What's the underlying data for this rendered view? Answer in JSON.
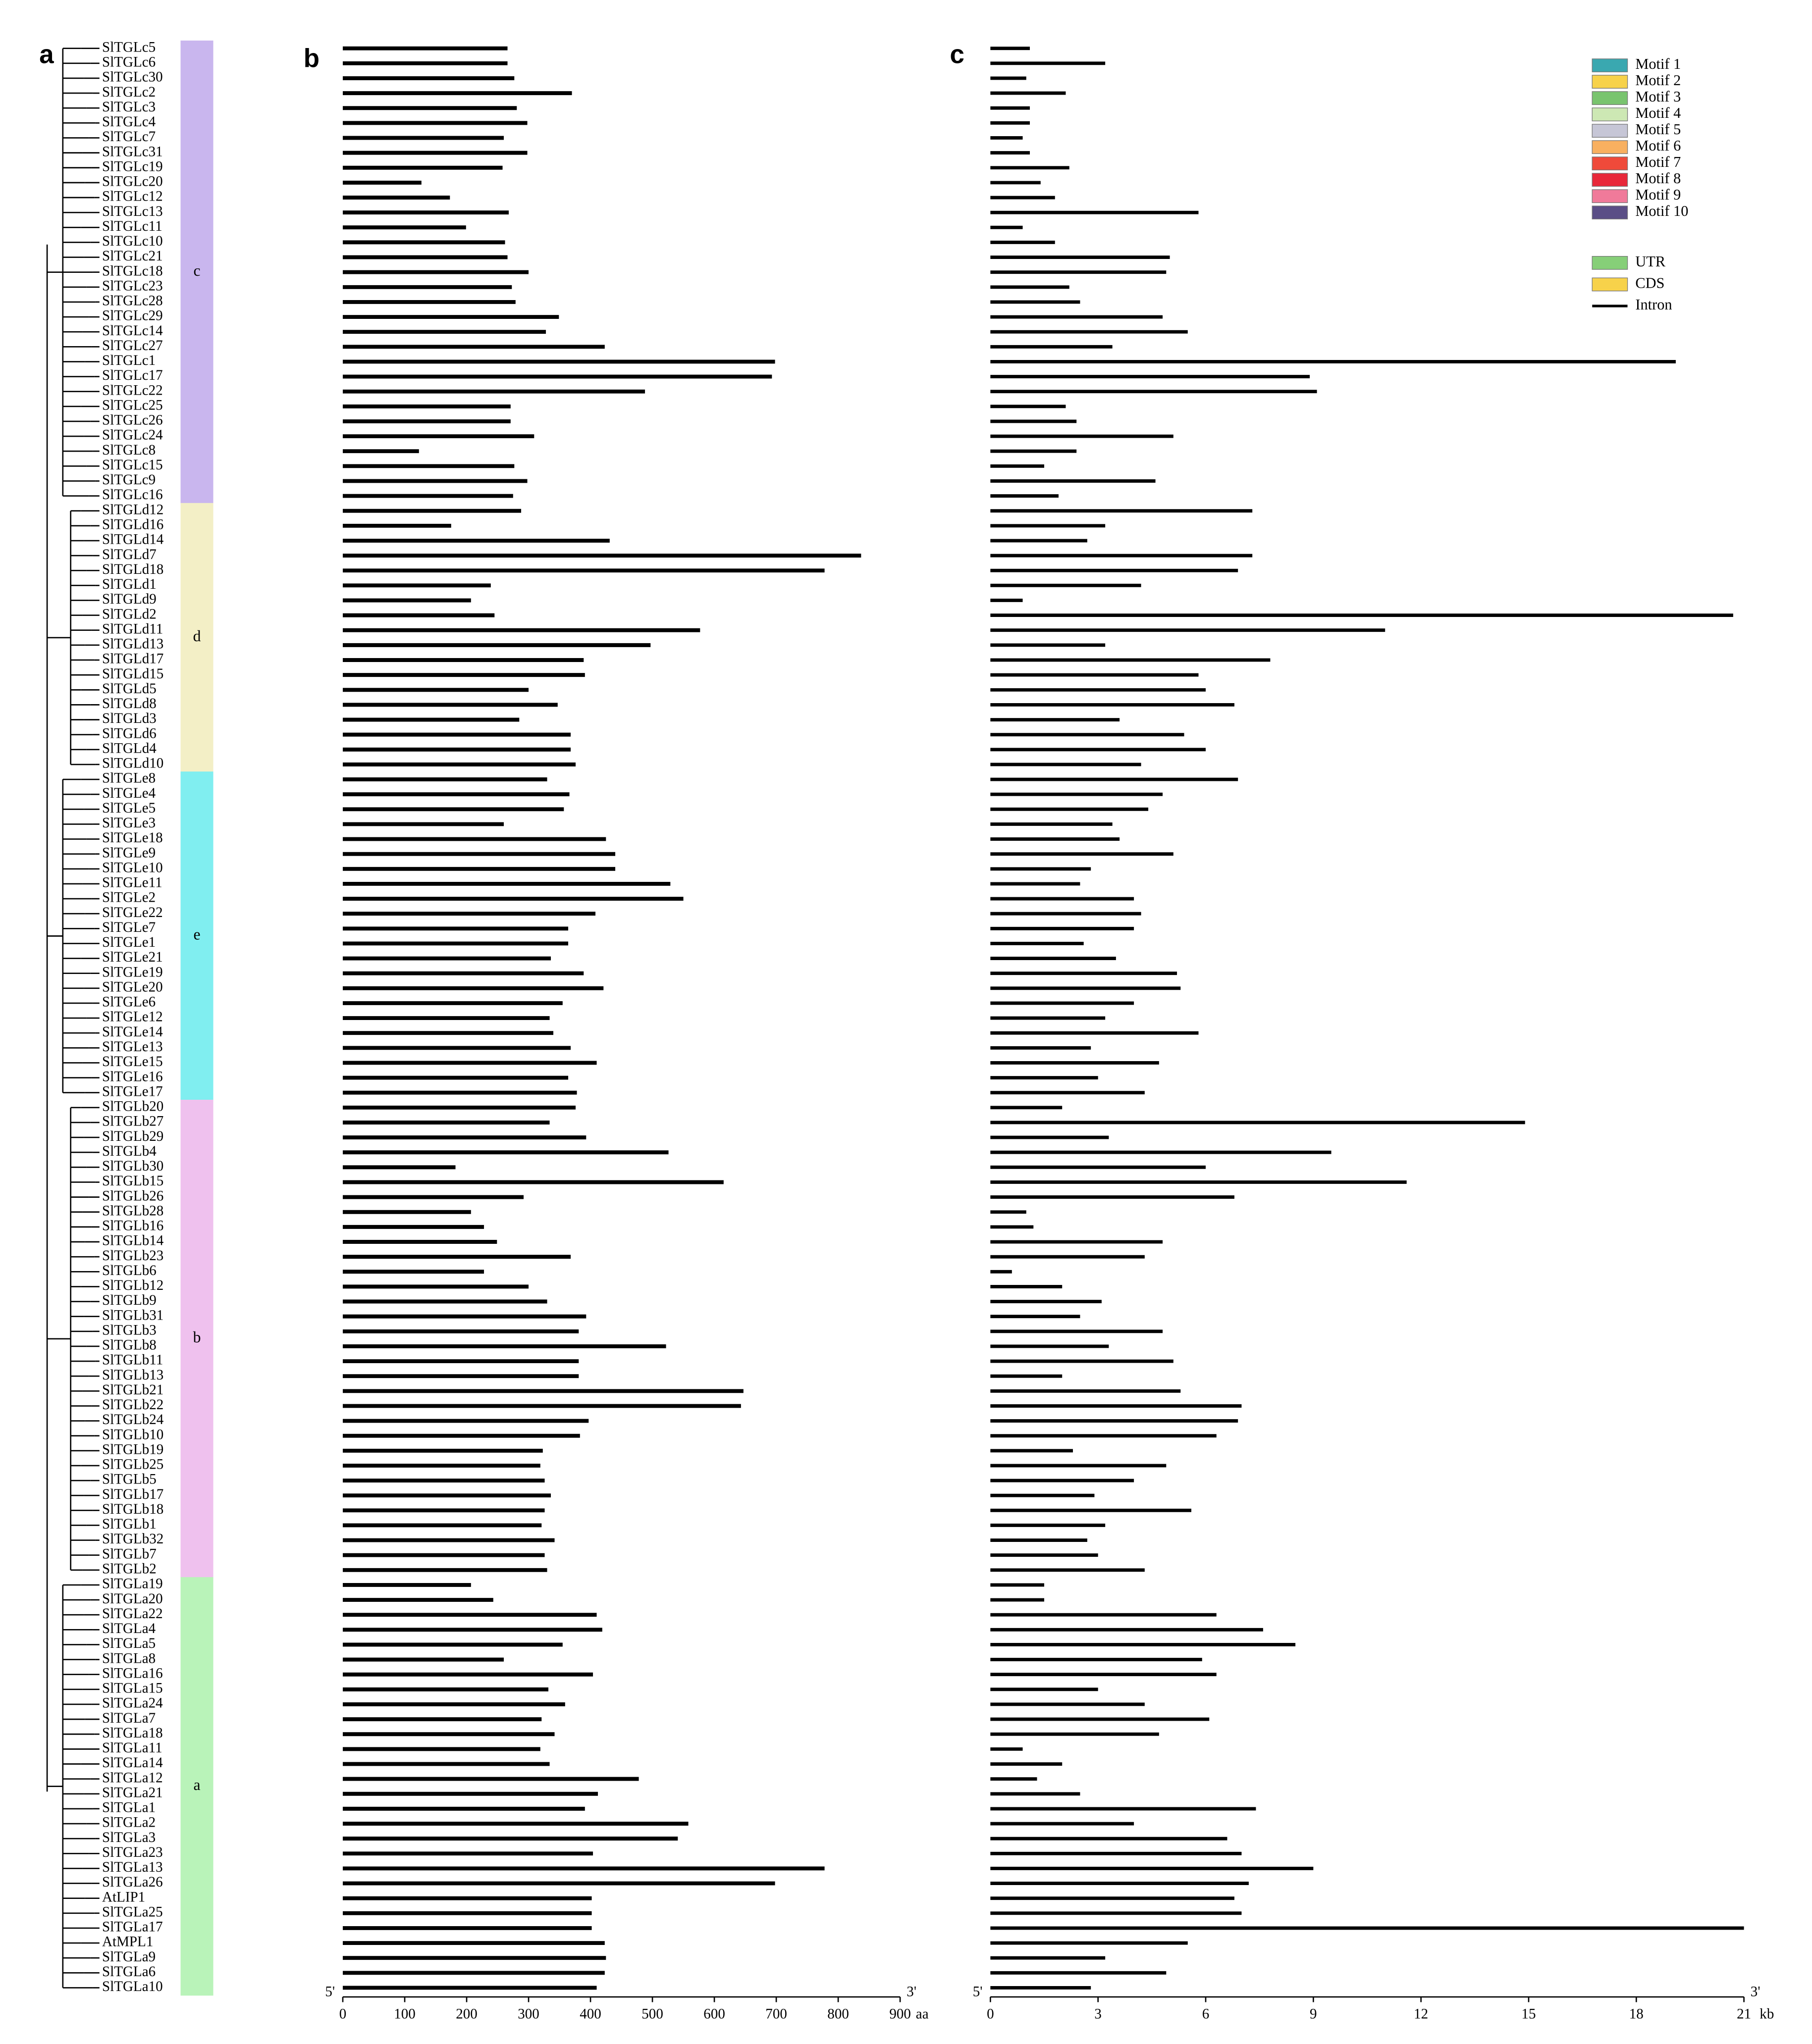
{
  "panel_labels": [
    "a",
    "b",
    "c"
  ],
  "groups": [
    {
      "label": "c",
      "color": "#c9b6ee",
      "genes": [
        {
          "name": "SlTGLc5",
          "protein_aa": 266,
          "gene_kb": 1.1
        },
        {
          "name": "SlTGLc6",
          "protein_aa": 266,
          "gene_kb": 3.2
        },
        {
          "name": "SlTGLc30",
          "protein_aa": 277,
          "gene_kb": 1.0
        },
        {
          "name": "SlTGLc2",
          "protein_aa": 370,
          "gene_kb": 2.1
        },
        {
          "name": "SlTGLc3",
          "protein_aa": 281,
          "gene_kb": 1.1
        },
        {
          "name": "SlTGLc4",
          "protein_aa": 298,
          "gene_kb": 1.1
        },
        {
          "name": "SlTGLc7",
          "protein_aa": 260,
          "gene_kb": 0.9
        },
        {
          "name": "SlTGLc31",
          "protein_aa": 298,
          "gene_kb": 1.1
        },
        {
          "name": "SlTGLc19",
          "protein_aa": 258,
          "gene_kb": 2.2
        },
        {
          "name": "SlTGLc20",
          "protein_aa": 127,
          "gene_kb": 1.4
        },
        {
          "name": "SlTGLc12",
          "protein_aa": 173,
          "gene_kb": 1.8
        },
        {
          "name": "SlTGLc13",
          "protein_aa": 268,
          "gene_kb": 5.8
        },
        {
          "name": "SlTGLc11",
          "protein_aa": 199,
          "gene_kb": 0.9
        },
        {
          "name": "SlTGLc10",
          "protein_aa": 262,
          "gene_kb": 1.8
        },
        {
          "name": "SlTGLc21",
          "protein_aa": 266,
          "gene_kb": 5.0
        },
        {
          "name": "SlTGLc18",
          "protein_aa": 300,
          "gene_kb": 4.9
        },
        {
          "name": "SlTGLc23",
          "protein_aa": 273,
          "gene_kb": 2.2
        },
        {
          "name": "SlTGLc28",
          "protein_aa": 279,
          "gene_kb": 2.5
        },
        {
          "name": "SlTGLc29",
          "protein_aa": 349,
          "gene_kb": 4.8
        },
        {
          "name": "SlTGLc14",
          "protein_aa": 328,
          "gene_kb": 5.5
        },
        {
          "name": "SlTGLc27",
          "protein_aa": 423,
          "gene_kb": 3.4
        },
        {
          "name": "SlTGLc1",
          "protein_aa": 698,
          "gene_kb": 19.1
        },
        {
          "name": "SlTGLc17",
          "protein_aa": 693,
          "gene_kb": 8.9
        },
        {
          "name": "SlTGLc22",
          "protein_aa": 488,
          "gene_kb": 9.1
        },
        {
          "name": "SlTGLc25",
          "protein_aa": 271,
          "gene_kb": 2.1
        },
        {
          "name": "SlTGLc26",
          "protein_aa": 271,
          "gene_kb": 2.4
        },
        {
          "name": "SlTGLc24",
          "protein_aa": 309,
          "gene_kb": 5.1
        },
        {
          "name": "SlTGLc8",
          "protein_aa": 123,
          "gene_kb": 2.4
        },
        {
          "name": "SlTGLc15",
          "protein_aa": 277,
          "gene_kb": 1.5
        },
        {
          "name": "SlTGLc9",
          "protein_aa": 298,
          "gene_kb": 4.6
        },
        {
          "name": "SlTGLc16",
          "protein_aa": 275,
          "gene_kb": 1.9
        }
      ]
    },
    {
      "label": "d",
      "color": "#f3efc6",
      "genes": [
        {
          "name": "SlTGLd12",
          "protein_aa": 288,
          "gene_kb": 7.3
        },
        {
          "name": "SlTGLd16",
          "protein_aa": 175,
          "gene_kb": 3.2
        },
        {
          "name": "SlTGLd14",
          "protein_aa": 431,
          "gene_kb": 2.7
        },
        {
          "name": "SlTGLd7",
          "protein_aa": 837,
          "gene_kb": 7.3
        },
        {
          "name": "SlTGLd18",
          "protein_aa": 778,
          "gene_kb": 6.9
        },
        {
          "name": "SlTGLd1",
          "protein_aa": 239,
          "gene_kb": 4.2
        },
        {
          "name": "SlTGLd9",
          "protein_aa": 207,
          "gene_kb": 0.9
        },
        {
          "name": "SlTGLd2",
          "protein_aa": 245,
          "gene_kb": 20.7
        },
        {
          "name": "SlTGLd11",
          "protein_aa": 577,
          "gene_kb": 11.0
        },
        {
          "name": "SlTGLd13",
          "protein_aa": 497,
          "gene_kb": 3.2
        },
        {
          "name": "SlTGLd17",
          "protein_aa": 389,
          "gene_kb": 7.8
        },
        {
          "name": "SlTGLd15",
          "protein_aa": 391,
          "gene_kb": 5.8
        },
        {
          "name": "SlTGLd5",
          "protein_aa": 300,
          "gene_kb": 6.0
        },
        {
          "name": "SlTGLd8",
          "protein_aa": 347,
          "gene_kb": 6.8
        },
        {
          "name": "SlTGLd3",
          "protein_aa": 285,
          "gene_kb": 3.6
        },
        {
          "name": "SlTGLd6",
          "protein_aa": 368,
          "gene_kb": 5.4
        },
        {
          "name": "SlTGLd4",
          "protein_aa": 368,
          "gene_kb": 6.0
        },
        {
          "name": "SlTGLd10",
          "protein_aa": 376,
          "gene_kb": 4.2
        }
      ]
    },
    {
      "label": "e",
      "color": "#80eef0",
      "genes": [
        {
          "name": "SlTGLe8",
          "protein_aa": 330,
          "gene_kb": 6.9
        },
        {
          "name": "SlTGLe4",
          "protein_aa": 366,
          "gene_kb": 4.8
        },
        {
          "name": "SlTGLe5",
          "protein_aa": 357,
          "gene_kb": 4.4
        },
        {
          "name": "SlTGLe3",
          "protein_aa": 260,
          "gene_kb": 3.4
        },
        {
          "name": "SlTGLe18",
          "protein_aa": 425,
          "gene_kb": 3.6
        },
        {
          "name": "SlTGLe9",
          "protein_aa": 440,
          "gene_kb": 5.1
        },
        {
          "name": "SlTGLe10",
          "protein_aa": 440,
          "gene_kb": 2.8
        },
        {
          "name": "SlTGLe11",
          "protein_aa": 529,
          "gene_kb": 2.5
        },
        {
          "name": "SlTGLe2",
          "protein_aa": 550,
          "gene_kb": 4.0
        },
        {
          "name": "SlTGLe22",
          "protein_aa": 408,
          "gene_kb": 4.2
        },
        {
          "name": "SlTGLe7",
          "protein_aa": 364,
          "gene_kb": 4.0
        },
        {
          "name": "SlTGLe1",
          "protein_aa": 364,
          "gene_kb": 2.6
        },
        {
          "name": "SlTGLe21",
          "protein_aa": 336,
          "gene_kb": 3.5
        },
        {
          "name": "SlTGLe19",
          "protein_aa": 389,
          "gene_kb": 5.2
        },
        {
          "name": "SlTGLe20",
          "protein_aa": 421,
          "gene_kb": 5.3
        },
        {
          "name": "SlTGLe6",
          "protein_aa": 355,
          "gene_kb": 4.0
        },
        {
          "name": "SlTGLe12",
          "protein_aa": 334,
          "gene_kb": 3.2
        },
        {
          "name": "SlTGLe14",
          "protein_aa": 340,
          "gene_kb": 5.8
        },
        {
          "name": "SlTGLe13",
          "protein_aa": 368,
          "gene_kb": 2.8
        },
        {
          "name": "SlTGLe15",
          "protein_aa": 410,
          "gene_kb": 4.7
        },
        {
          "name": "SlTGLe16",
          "protein_aa": 364,
          "gene_kb": 3.0
        },
        {
          "name": "SlTGLe17",
          "protein_aa": 378,
          "gene_kb": 4.3
        }
      ]
    },
    {
      "label": "b",
      "color": "#efc1ee",
      "genes": [
        {
          "name": "SlTGLb20",
          "protein_aa": 376,
          "gene_kb": 2.0
        },
        {
          "name": "SlTGLb27",
          "protein_aa": 334,
          "gene_kb": 14.9
        },
        {
          "name": "SlTGLb29",
          "protein_aa": 393,
          "gene_kb": 3.3
        },
        {
          "name": "SlTGLb4",
          "protein_aa": 526,
          "gene_kb": 9.5
        },
        {
          "name": "SlTGLb30",
          "protein_aa": 182,
          "gene_kb": 6.0
        },
        {
          "name": "SlTGLb15",
          "protein_aa": 615,
          "gene_kb": 11.6
        },
        {
          "name": "SlTGLb26",
          "protein_aa": 292,
          "gene_kb": 6.8
        },
        {
          "name": "SlTGLb28",
          "protein_aa": 207,
          "gene_kb": 1.0
        },
        {
          "name": "SlTGLb16",
          "protein_aa": 228,
          "gene_kb": 1.2
        },
        {
          "name": "SlTGLb14",
          "protein_aa": 249,
          "gene_kb": 4.8
        },
        {
          "name": "SlTGLb23",
          "protein_aa": 368,
          "gene_kb": 4.3
        },
        {
          "name": "SlTGLb6",
          "protein_aa": 228,
          "gene_kb": 0.6
        },
        {
          "name": "SlTGLb12",
          "protein_aa": 300,
          "gene_kb": 2.0
        },
        {
          "name": "SlTGLb9",
          "protein_aa": 330,
          "gene_kb": 3.1
        },
        {
          "name": "SlTGLb31",
          "protein_aa": 393,
          "gene_kb": 2.5
        },
        {
          "name": "SlTGLb3",
          "protein_aa": 381,
          "gene_kb": 4.8
        },
        {
          "name": "SlTGLb8",
          "protein_aa": 522,
          "gene_kb": 3.3
        },
        {
          "name": "SlTGLb11",
          "protein_aa": 381,
          "gene_kb": 5.1
        },
        {
          "name": "SlTGLb13",
          "protein_aa": 381,
          "gene_kb": 2.0
        },
        {
          "name": "SlTGLb21",
          "protein_aa": 647,
          "gene_kb": 5.3
        },
        {
          "name": "SlTGLb22",
          "protein_aa": 643,
          "gene_kb": 7.0
        },
        {
          "name": "SlTGLb24",
          "protein_aa": 397,
          "gene_kb": 6.9
        },
        {
          "name": "SlTGLb10",
          "protein_aa": 383,
          "gene_kb": 6.3
        },
        {
          "name": "SlTGLb19",
          "protein_aa": 323,
          "gene_kb": 2.3
        },
        {
          "name": "SlTGLb25",
          "protein_aa": 319,
          "gene_kb": 4.9
        },
        {
          "name": "SlTGLb5",
          "protein_aa": 326,
          "gene_kb": 4.0
        },
        {
          "name": "SlTGLb17",
          "protein_aa": 336,
          "gene_kb": 2.9
        },
        {
          "name": "SlTGLb18",
          "protein_aa": 326,
          "gene_kb": 5.6
        },
        {
          "name": "SlTGLb1",
          "protein_aa": 321,
          "gene_kb": 3.2
        },
        {
          "name": "SlTGLb32",
          "protein_aa": 342,
          "gene_kb": 2.7
        },
        {
          "name": "SlTGLb7",
          "protein_aa": 326,
          "gene_kb": 3.0
        },
        {
          "name": "SlTGLb2",
          "protein_aa": 330,
          "gene_kb": 4.3
        }
      ]
    },
    {
      "label": "a",
      "color": "#b9f3b9",
      "genes": [
        {
          "name": "SlTGLa19",
          "protein_aa": 207,
          "gene_kb": 1.5
        },
        {
          "name": "SlTGLa20",
          "protein_aa": 243,
          "gene_kb": 1.5
        },
        {
          "name": "SlTGLa22",
          "protein_aa": 410,
          "gene_kb": 6.3
        },
        {
          "name": "SlTGLa4",
          "protein_aa": 419,
          "gene_kb": 7.6
        },
        {
          "name": "SlTGLa5",
          "protein_aa": 355,
          "gene_kb": 8.5
        },
        {
          "name": "SlTGLa8",
          "protein_aa": 260,
          "gene_kb": 5.9
        },
        {
          "name": "SlTGLa16",
          "protein_aa": 404,
          "gene_kb": 6.3
        },
        {
          "name": "SlTGLa15",
          "protein_aa": 332,
          "gene_kb": 3.0
        },
        {
          "name": "SlTGLa24",
          "protein_aa": 359,
          "gene_kb": 4.3
        },
        {
          "name": "SlTGLa7",
          "protein_aa": 321,
          "gene_kb": 6.1
        },
        {
          "name": "SlTGLa18",
          "protein_aa": 342,
          "gene_kb": 4.7
        },
        {
          "name": "SlTGLa11",
          "protein_aa": 319,
          "gene_kb": 0.9
        },
        {
          "name": "SlTGLa14",
          "protein_aa": 334,
          "gene_kb": 2.0
        },
        {
          "name": "SlTGLa12",
          "protein_aa": 478,
          "gene_kb": 1.3
        },
        {
          "name": "SlTGLa21",
          "protein_aa": 412,
          "gene_kb": 2.5
        },
        {
          "name": "SlTGLa1",
          "protein_aa": 391,
          "gene_kb": 7.4
        },
        {
          "name": "SlTGLa2",
          "protein_aa": 558,
          "gene_kb": 4.0
        },
        {
          "name": "SlTGLa3",
          "protein_aa": 541,
          "gene_kb": 6.6
        },
        {
          "name": "SlTGLa23",
          "protein_aa": 404,
          "gene_kb": 7.0
        },
        {
          "name": "SlTGLa13",
          "protein_aa": 778,
          "gene_kb": 9.0
        },
        {
          "name": "SlTGLa26",
          "protein_aa": 698,
          "gene_kb": 7.2
        },
        {
          "name": "AtLIP1",
          "protein_aa": 402,
          "gene_kb": 6.8
        },
        {
          "name": "SlTGLa25",
          "protein_aa": 402,
          "gene_kb": 7.0
        },
        {
          "name": "SlTGLa17",
          "protein_aa": 402,
          "gene_kb": 21.0
        },
        {
          "name": "AtMPL1",
          "protein_aa": 423,
          "gene_kb": 5.5
        },
        {
          "name": "SlTGLa9",
          "protein_aa": 425,
          "gene_kb": 3.2
        },
        {
          "name": "SlTGLa6",
          "protein_aa": 423,
          "gene_kb": 4.9
        },
        {
          "name": "SlTGLa10",
          "protein_aa": 410,
          "gene_kb": 2.8
        }
      ]
    }
  ],
  "protein_axis": {
    "start_label": "5'",
    "end_label": "3'",
    "unit": "aa",
    "xlim": [
      0,
      900
    ],
    "xticks": [
      0,
      100,
      200,
      300,
      400,
      500,
      600,
      700,
      800,
      900
    ]
  },
  "gene_axis": {
    "start_label": "5'",
    "end_label": "3'",
    "unit": "kb",
    "xlim": [
      0,
      21
    ],
    "xticks": [
      0,
      3,
      6,
      9,
      12,
      15,
      18,
      21
    ]
  },
  "motif_legend": [
    {
      "name": "Motif 1",
      "color": "#3aa8b0"
    },
    {
      "name": "Motif 2",
      "color": "#f7d24a"
    },
    {
      "name": "Motif 3",
      "color": "#79c46e"
    },
    {
      "name": "Motif 4",
      "color": "#cde8b4"
    },
    {
      "name": "Motif 5",
      "color": "#c6c6d6"
    },
    {
      "name": "Motif 6",
      "color": "#f8b060"
    },
    {
      "name": "Motif 7",
      "color": "#ef4a3a"
    },
    {
      "name": "Motif 8",
      "color": "#e8283a"
    },
    {
      "name": "Motif 9",
      "color": "#f07a9a"
    },
    {
      "name": "Motif 10",
      "color": "#5a4e86"
    }
  ],
  "structure_legend": [
    {
      "name": "UTR",
      "color": "#86cf78"
    },
    {
      "name": "CDS",
      "color": "#f7d24a"
    },
    {
      "name": "Intron",
      "color": "#000000"
    }
  ]
}
